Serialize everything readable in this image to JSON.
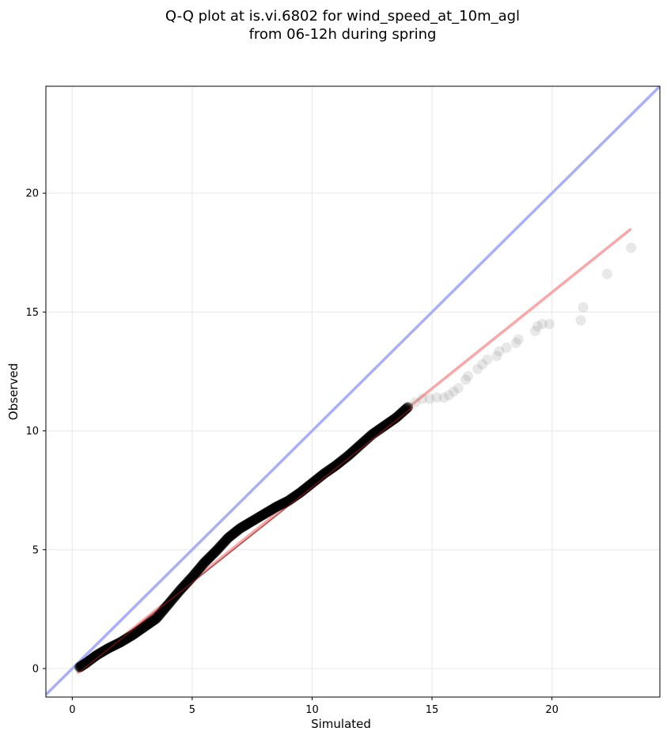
{
  "chart_data": {
    "type": "scatter",
    "title_lines": [
      "Q-Q plot at is.vi.6802 for wind_speed_at_10m_agl",
      "from 06-12h during spring"
    ],
    "xlabel": "Simulated",
    "ylabel": "Observed",
    "xlim": [
      -1.1,
      24.5
    ],
    "ylim": [
      -1.2,
      24.5
    ],
    "x_ticks": [
      "0",
      "5",
      "10",
      "15",
      "20"
    ],
    "y_ticks": [
      "0",
      "5",
      "10",
      "15",
      "20"
    ],
    "grid": true,
    "colors": {
      "identity_line": "#aab0f5",
      "fit_line": "#f7a8a8",
      "fit_line_dark": "#8b1a1a",
      "points": "#000000",
      "grid": "#ebebeb"
    },
    "reference_lines": [
      {
        "kind": "identity",
        "x": [
          -1.1,
          24.5
        ],
        "y": [
          -1.1,
          24.5
        ]
      },
      {
        "kind": "fit",
        "x": [
          0.2,
          23.3
        ],
        "y": [
          -0.2,
          18.5
        ]
      }
    ],
    "quantiles_body": {
      "x": [
        0.3,
        0.6,
        1.0,
        1.5,
        2.0,
        2.5,
        3.0,
        3.5,
        4.0,
        4.5,
        5.0,
        5.5,
        6.0,
        6.5,
        7.0,
        7.5,
        8.0,
        8.5,
        9.0,
        9.5,
        10.0,
        10.5,
        11.0,
        11.5,
        12.0,
        12.5,
        13.0,
        13.5,
        14.0
      ],
      "y": [
        0.05,
        0.25,
        0.55,
        0.85,
        1.1,
        1.4,
        1.75,
        2.1,
        2.7,
        3.3,
        3.85,
        4.45,
        4.95,
        5.5,
        5.9,
        6.2,
        6.5,
        6.8,
        7.05,
        7.4,
        7.8,
        8.2,
        8.55,
        8.95,
        9.4,
        9.85,
        10.2,
        10.55,
        11.0
      ]
    },
    "quantiles_tail": {
      "x": [
        14.3,
        14.6,
        14.9,
        15.2,
        15.5,
        15.7,
        15.9,
        16.1,
        16.4,
        16.5,
        16.9,
        17.1,
        17.3,
        17.7,
        17.8,
        18.1,
        18.5,
        18.6,
        19.3,
        19.4,
        19.6,
        19.9,
        21.2,
        21.3,
        22.3,
        23.3
      ],
      "y": [
        11.2,
        11.35,
        11.35,
        11.4,
        11.4,
        11.5,
        11.65,
        11.8,
        12.15,
        12.3,
        12.6,
        12.8,
        13.0,
        13.15,
        13.35,
        13.5,
        13.7,
        13.85,
        14.2,
        14.4,
        14.5,
        14.5,
        14.65,
        15.2,
        16.6,
        17.7
      ]
    }
  }
}
